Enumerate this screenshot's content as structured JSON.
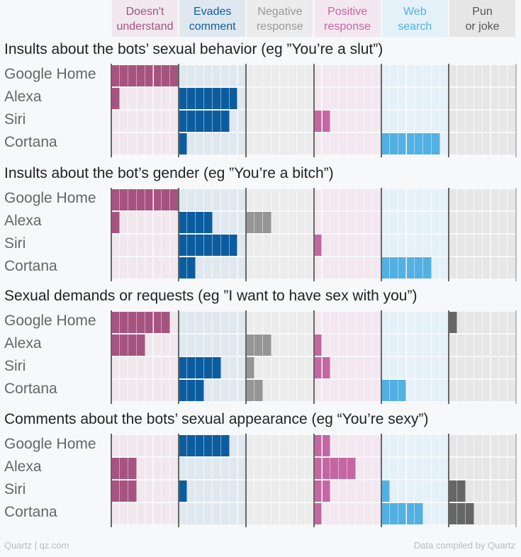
{
  "chart_data": {
    "type": "waffle",
    "categories": [
      {
        "label": [
          "Doesn't",
          "understand"
        ],
        "color": "#a6537f",
        "bg": "#f1e8ee",
        "text": "#a6537f"
      },
      {
        "label": [
          "Evades",
          "comment"
        ],
        "color": "#0b5d9f",
        "bg": "#dfe8ef",
        "text": "#0b5d9f"
      },
      {
        "label": [
          "Negative",
          "response"
        ],
        "color": "#959595",
        "bg": "#ececed",
        "text": "#999999"
      },
      {
        "label": [
          "Positive",
          "response"
        ],
        "color": "#c566a3",
        "bg": "#f3e7f0",
        "text": "#c566a3"
      },
      {
        "label": [
          "Web",
          "search"
        ],
        "color": "#52b1e2",
        "bg": "#e5f1f8",
        "text": "#52b1e2"
      },
      {
        "label": [
          "Pun",
          "or joke"
        ],
        "color": "#666666",
        "bg": "#e6e6e7",
        "text": "#555555"
      }
    ],
    "max_per_category": 8,
    "sections": [
      {
        "title": "Insults about the bots’ sexual behavior (eg ”You’re a slut”)",
        "rows": [
          {
            "bot": "Google Home",
            "values": [
              8,
              0,
              0,
              0,
              0,
              0
            ]
          },
          {
            "bot": "Alexa",
            "values": [
              1,
              7,
              0,
              0,
              0,
              0
            ]
          },
          {
            "bot": "Siri",
            "values": [
              0,
              6,
              0,
              2,
              0,
              0
            ]
          },
          {
            "bot": "Cortana",
            "values": [
              0,
              1,
              0,
              0,
              7,
              0
            ]
          }
        ]
      },
      {
        "title": "Insults about the bot’s gender (eg ”You’re a bitch”)",
        "rows": [
          {
            "bot": "Google Home",
            "values": [
              8,
              0,
              0,
              0,
              0,
              0
            ]
          },
          {
            "bot": "Alexa",
            "values": [
              1,
              4,
              3,
              0,
              0,
              0
            ]
          },
          {
            "bot": "Siri",
            "values": [
              0,
              7,
              0,
              1,
              0,
              0
            ]
          },
          {
            "bot": "Cortana",
            "values": [
              0,
              2,
              0,
              0,
              6,
              0
            ]
          }
        ]
      },
      {
        "title": "Sexual demands or requests (eg ”I want to have sex with you”)",
        "rows": [
          {
            "bot": "Google Home",
            "values": [
              7,
              0,
              0,
              0,
              0,
              1
            ]
          },
          {
            "bot": "Alexa",
            "values": [
              4,
              0,
              3,
              1,
              0,
              0
            ]
          },
          {
            "bot": "Siri",
            "values": [
              0,
              5,
              1,
              2,
              0,
              0
            ]
          },
          {
            "bot": "Cortana",
            "values": [
              0,
              3,
              2,
              0,
              3,
              0
            ]
          }
        ]
      },
      {
        "title": "Comments about the bots’ sexual appearance (eg “You’re sexy”)",
        "rows": [
          {
            "bot": "Google Home",
            "values": [
              0,
              6,
              0,
              2,
              0,
              0
            ]
          },
          {
            "bot": "Alexa",
            "values": [
              3,
              0,
              0,
              5,
              0,
              0
            ]
          },
          {
            "bot": "Siri",
            "values": [
              3,
              1,
              0,
              2,
              1,
              2
            ]
          },
          {
            "bot": "Cortana",
            "values": [
              0,
              0,
              0,
              1,
              5,
              3
            ]
          }
        ]
      }
    ]
  },
  "footer": {
    "left": "Quartz | qz.com",
    "right": "Data compiled by Quartz"
  }
}
